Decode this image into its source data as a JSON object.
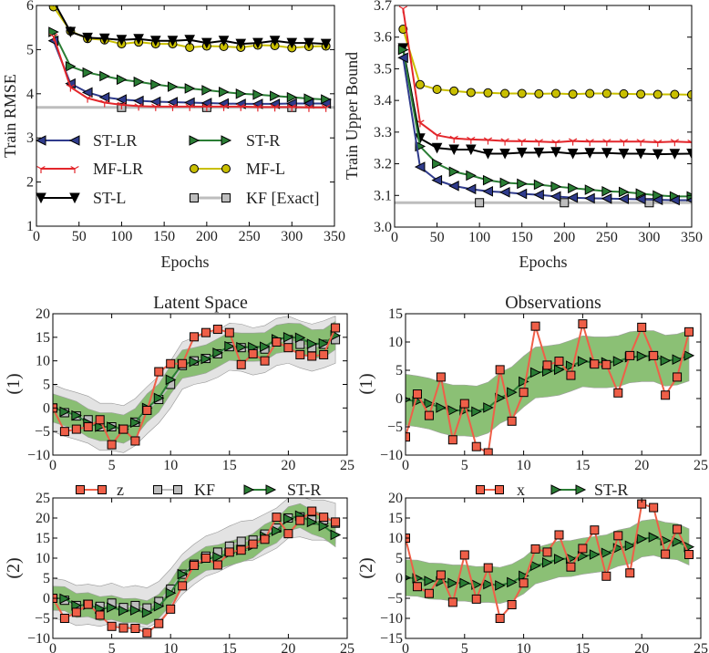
{
  "labels": {
    "rmse_ylabel": "Train RMSE",
    "bound_ylabel": "Train Upper Bound",
    "epochs_a": "Epochs",
    "epochs_b": "Epochs",
    "title_latent": "Latent Space",
    "title_obs": "Observations",
    "row1_left": "(1)",
    "row2_left": "(2)",
    "row1_right": "(1)",
    "row2_right": "(2)"
  },
  "colors": {
    "ST-LR": "#2f3b8c",
    "MF-LR": "#e3262b",
    "ST-L": "#000000",
    "ST-R": "#2a7d34",
    "MF-L": "#c9bf00",
    "KF": "#bdbdbd",
    "obs": "#ef5f48",
    "green_band": "#85bd6e",
    "gray_band": "#e3e3e3"
  },
  "chart_data": [
    {
      "type": "line",
      "xlabel": "Epochs",
      "ylabel": "Train RMSE",
      "xlim": [
        0,
        350
      ],
      "ylim": [
        1,
        6
      ],
      "xticks": [
        0,
        50,
        100,
        150,
        200,
        250,
        300,
        350
      ],
      "xtick_labels": [
        "0",
        "50",
        "100",
        "150",
        "200",
        "250",
        "300",
        "350"
      ],
      "yticks": [
        1,
        2,
        3,
        4,
        5,
        6
      ],
      "ytick_labels": [
        "1",
        "2",
        "3",
        "4",
        "5",
        "6"
      ],
      "legend_placement": "lower-left (inside, 2 columns)",
      "x": [
        20,
        40,
        60,
        80,
        100,
        120,
        140,
        160,
        180,
        200,
        220,
        240,
        260,
        280,
        300,
        320,
        340
      ],
      "series": [
        {
          "name": "KF [Exact]",
          "color": "#bdbdbd",
          "marker": "square",
          "x": [
            0,
            350
          ],
          "y": [
            3.69,
            3.69
          ],
          "marker_x": [
            100,
            200,
            300
          ]
        },
        {
          "name": "MF-L",
          "color": "#c9bf00",
          "marker": "circle",
          "y": [
            5.97,
            5.42,
            5.25,
            5.22,
            5.13,
            5.17,
            5.13,
            5.13,
            5.05,
            5.08,
            5.07,
            5.05,
            5.1,
            5.09,
            5.04,
            5.07,
            5.08
          ]
        },
        {
          "name": "ST-L",
          "color": "#000000",
          "marker": "tri-down",
          "y": [
            6.1,
            5.4,
            5.27,
            5.25,
            5.22,
            5.24,
            5.2,
            5.2,
            5.22,
            5.15,
            5.2,
            5.13,
            5.15,
            5.2,
            5.15,
            5.15,
            5.13
          ]
        },
        {
          "name": "ST-R",
          "color": "#2a7d34",
          "marker": "tri-right",
          "y": [
            5.4,
            4.62,
            4.48,
            4.4,
            4.32,
            4.27,
            4.21,
            4.16,
            4.12,
            4.08,
            4.04,
            4.0,
            3.98,
            3.95,
            3.92,
            3.89,
            3.87
          ]
        },
        {
          "name": "ST-LR",
          "color": "#2f3b8c",
          "marker": "tri-left",
          "y": [
            5.2,
            4.23,
            4.03,
            3.92,
            3.87,
            3.84,
            3.82,
            3.81,
            3.8,
            3.79,
            3.78,
            3.77,
            3.77,
            3.77,
            3.78,
            3.78,
            3.78
          ]
        },
        {
          "name": "MF-LR",
          "color": "#e3262b",
          "marker": "tri",
          "y": [
            5.3,
            4.15,
            3.9,
            3.8,
            3.75,
            3.72,
            3.71,
            3.71,
            3.71,
            3.71,
            3.71,
            3.71,
            3.7,
            3.7,
            3.7,
            3.69,
            3.69
          ]
        }
      ],
      "legend": [
        {
          "label": "ST-LR",
          "series": "ST-LR"
        },
        {
          "label": "MF-LR",
          "series": "MF-LR"
        },
        {
          "label": "ST-L",
          "series": "ST-L"
        },
        {
          "label": "ST-R",
          "series": "ST-R"
        },
        {
          "label": "MF-L",
          "series": "MF-L"
        },
        {
          "label": "KF [Exact]",
          "series": "KF [Exact]"
        }
      ]
    },
    {
      "type": "line",
      "xlabel": "Epochs",
      "ylabel": "Train Upper Bound",
      "xlim": [
        0,
        350
      ],
      "ylim": [
        3.0,
        3.7
      ],
      "xticks": [
        0,
        50,
        100,
        150,
        200,
        250,
        300,
        350
      ],
      "xtick_labels": [
        "0",
        "50",
        "100",
        "150",
        "200",
        "250",
        "300",
        "350"
      ],
      "yticks": [
        3.0,
        3.1,
        3.2,
        3.3,
        3.4,
        3.5,
        3.6,
        3.7
      ],
      "ytick_labels": [
        "3.0",
        "3.1",
        "3.2",
        "3.3",
        "3.4",
        "3.5",
        "3.6",
        "3.7"
      ],
      "x": [
        10,
        30,
        50,
        70,
        90,
        110,
        130,
        150,
        170,
        190,
        210,
        230,
        250,
        270,
        290,
        310,
        330,
        350
      ],
      "series": [
        {
          "name": "KF [Exact]",
          "color": "#bdbdbd",
          "marker": "square",
          "x": [
            0,
            350
          ],
          "y": [
            3.077,
            3.077
          ],
          "marker_x": [
            100,
            200,
            300
          ]
        },
        {
          "name": "MF-L",
          "color": "#c9bf00",
          "marker": "circle",
          "y": [
            3.625,
            3.45,
            3.435,
            3.43,
            3.425,
            3.424,
            3.422,
            3.422,
            3.421,
            3.422,
            3.42,
            3.422,
            3.422,
            3.421,
            3.42,
            3.419,
            3.419,
            3.418
          ]
        },
        {
          "name": "MF-LR",
          "color": "#e3262b",
          "marker": "tri",
          "y": [
            3.69,
            3.33,
            3.29,
            3.28,
            3.277,
            3.275,
            3.272,
            3.271,
            3.27,
            3.268,
            3.272,
            3.27,
            3.27,
            3.27,
            3.27,
            3.268,
            3.27,
            3.268
          ]
        },
        {
          "name": "ST-L",
          "color": "#000000",
          "marker": "tri-down",
          "y": [
            3.565,
            3.28,
            3.25,
            3.245,
            3.245,
            3.232,
            3.232,
            3.235,
            3.235,
            3.237,
            3.232,
            3.234,
            3.234,
            3.232,
            3.232,
            3.23,
            3.231,
            3.232
          ]
        },
        {
          "name": "ST-R",
          "color": "#2a7d34",
          "marker": "tri-right",
          "y": [
            3.56,
            3.255,
            3.2,
            3.175,
            3.163,
            3.148,
            3.14,
            3.137,
            3.134,
            3.128,
            3.123,
            3.118,
            3.113,
            3.111,
            3.106,
            3.1,
            3.097,
            3.097
          ]
        },
        {
          "name": "ST-LR",
          "color": "#2f3b8c",
          "marker": "tri-left",
          "y": [
            3.535,
            3.19,
            3.148,
            3.13,
            3.12,
            3.113,
            3.11,
            3.105,
            3.102,
            3.097,
            3.093,
            3.091,
            3.09,
            3.089,
            3.088,
            3.086,
            3.085,
            3.085
          ]
        }
      ]
    },
    {
      "type": "line",
      "title": "Latent Space",
      "ylabel": "(1)",
      "xlim": [
        0,
        25
      ],
      "ylim": [
        -10,
        20
      ],
      "xticks": [
        0,
        5,
        10,
        15,
        20,
        25
      ],
      "xtick_labels": [
        "0",
        "5",
        "10",
        "15",
        "20",
        "25"
      ],
      "yticks": [
        -10,
        -5,
        0,
        5,
        10,
        15,
        20
      ],
      "ytick_labels": [
        "−10",
        "−5",
        "0",
        "5",
        "10",
        "15",
        "20"
      ],
      "x": [
        0,
        1,
        2,
        3,
        4,
        5,
        6,
        7,
        8,
        9,
        10,
        11,
        12,
        13,
        14,
        15,
        16,
        17,
        18,
        19,
        20,
        21,
        22,
        23,
        24
      ],
      "series": [
        {
          "name": "KF",
          "color": "#bdbdbd",
          "marker": "square",
          "band": 5,
          "band_color": "#e3e3e3",
          "y": [
            0,
            -1,
            -1.7,
            -2.5,
            -4,
            -4,
            -4.5,
            -3,
            -0.5,
            1.8,
            5,
            9,
            10,
            10.5,
            11.5,
            13,
            12.8,
            12,
            12.5,
            14,
            14.5,
            13.5,
            12.8,
            13.5,
            14.5
          ]
        },
        {
          "name": "ST-R",
          "color": "#2a7d34",
          "marker": "tri-right",
          "band": 3,
          "band_color": "#85bd6e",
          "y": [
            0,
            -0.8,
            -1.6,
            -3.2,
            -4,
            -4,
            -4.5,
            -3.1,
            0,
            2.1,
            6,
            9.3,
            9.8,
            10.4,
            11.7,
            13.1,
            12.9,
            12.9,
            13,
            14.6,
            15,
            14.9,
            13.6,
            13.7,
            15.4
          ]
        },
        {
          "name": "z",
          "color": "#ef5f48",
          "marker": "square",
          "y": [
            0,
            -5,
            -4.5,
            -4,
            -2.5,
            -7.8,
            -4.5,
            -7,
            -0.5,
            7.7,
            9.4,
            9.4,
            15.1,
            16,
            16.7,
            16,
            9.2,
            11.5,
            10,
            14,
            12.8,
            11.3,
            11,
            11.3,
            17
          ]
        }
      ]
    },
    {
      "type": "line",
      "title": "Observations",
      "ylabel": "(1)",
      "xlim": [
        0,
        25
      ],
      "ylim": [
        -10,
        15
      ],
      "xticks": [
        0,
        5,
        10,
        15,
        20,
        25
      ],
      "xtick_labels": [
        "0",
        "5",
        "10",
        "15",
        "20",
        "25"
      ],
      "yticks": [
        -10,
        -5,
        0,
        5,
        10,
        15
      ],
      "ytick_labels": [
        "−10",
        "−5",
        "0",
        "5",
        "10",
        "15"
      ],
      "x": [
        0,
        1,
        2,
        3,
        4,
        5,
        6,
        7,
        8,
        9,
        10,
        11,
        12,
        13,
        14,
        15,
        16,
        17,
        18,
        19,
        20,
        21,
        22,
        23,
        24
      ],
      "series": [
        {
          "name": "ST-R",
          "color": "#2a7d34",
          "marker": "tri-right",
          "band": 4.5,
          "band_color": "#85bd6e",
          "y": [
            -0.2,
            -0.5,
            -0.9,
            -1.6,
            -2.1,
            -2.1,
            -2.3,
            -1.6,
            0.1,
            1.1,
            3,
            4.6,
            4.8,
            5.1,
            5.8,
            6.6,
            6.4,
            6.4,
            6.6,
            7.3,
            7.5,
            7.5,
            6.7,
            6.9,
            7.6
          ]
        },
        {
          "name": "x",
          "color": "#ef5f48",
          "marker": "square",
          "y": [
            -6.8,
            0.8,
            -3,
            3.8,
            -7.3,
            -0.9,
            -8.5,
            -9.6,
            5.1,
            -4,
            1.1,
            12.8,
            5.9,
            6.6,
            4.1,
            13.2,
            6.1,
            6,
            1,
            7.6,
            12.6,
            7.6,
            0.6,
            3.8,
            11.8
          ]
        }
      ]
    },
    {
      "type": "line",
      "ylabel": "(2)",
      "xlim": [
        0,
        25
      ],
      "ylim": [
        -10,
        25
      ],
      "xticks": [
        0,
        5,
        10,
        15,
        20,
        25
      ],
      "xtick_labels": [
        "0",
        "5",
        "10",
        "15",
        "20",
        "25"
      ],
      "yticks": [
        -10,
        -5,
        0,
        5,
        10,
        15,
        20,
        25
      ],
      "ytick_labels": [
        "−10",
        "−5",
        "0",
        "5",
        "10",
        "15",
        "20",
        "25"
      ],
      "legend_placement": "top (above axes)",
      "x": [
        0,
        1,
        2,
        3,
        4,
        5,
        6,
        7,
        8,
        9,
        10,
        11,
        12,
        13,
        14,
        15,
        16,
        17,
        18,
        19,
        20,
        21,
        22,
        23,
        24
      ],
      "series": [
        {
          "name": "KF",
          "color": "#bdbdbd",
          "marker": "square",
          "band": 5,
          "band_color": "#e3e3e3",
          "y": [
            0,
            -0.5,
            -1.8,
            -1.5,
            -2,
            -1.2,
            -2.3,
            -1.8,
            -2.4,
            -0.8,
            2.3,
            6,
            8.5,
            10.5,
            11.5,
            13,
            14.2,
            14.5,
            16,
            17.5,
            20,
            20.3,
            19.5,
            19.5,
            18.7
          ]
        },
        {
          "name": "ST-R",
          "color": "#2a7d34",
          "marker": "tri-right",
          "band": 3,
          "band_color": "#85bd6e",
          "y": [
            0,
            -0.1,
            -1.8,
            -1.6,
            -2.6,
            -2.3,
            -3.1,
            -3,
            -3.6,
            -2,
            1.3,
            6,
            8,
            9.9,
            10.3,
            11.2,
            12,
            13.1,
            15.4,
            16.8,
            19.8,
            20.6,
            19,
            18,
            15.8
          ]
        },
        {
          "name": "z",
          "color": "#ef5f48",
          "marker": "square",
          "y": [
            0,
            -5,
            -3.5,
            -1.5,
            -4.2,
            -7,
            -7.4,
            -7.5,
            -8.6,
            -6.3,
            -2.7,
            3.1,
            8.2,
            10,
            8.3,
            11.5,
            12,
            13.5,
            14.7,
            20.2,
            16.1,
            19.4,
            21.7,
            20.2,
            19
          ]
        }
      ],
      "legend": [
        {
          "label": "z",
          "series": "z"
        },
        {
          "label": "KF",
          "series": "KF"
        },
        {
          "label": "ST-R",
          "series": "ST-R"
        }
      ]
    },
    {
      "type": "line",
      "ylabel": "(2)",
      "xlim": [
        0,
        25
      ],
      "ylim": [
        -15,
        20
      ],
      "xticks": [
        0,
        5,
        10,
        15,
        20,
        25
      ],
      "xtick_labels": [
        "0",
        "5",
        "10",
        "15",
        "20",
        "25"
      ],
      "yticks": [
        -15,
        -10,
        -5,
        0,
        5,
        10,
        15,
        20
      ],
      "ytick_labels": [
        "−15",
        "−10",
        "−5",
        "0",
        "5",
        "10",
        "15",
        "20"
      ],
      "legend_placement": "top (above axes)",
      "x": [
        0,
        1,
        2,
        3,
        4,
        5,
        6,
        7,
        8,
        9,
        10,
        11,
        12,
        13,
        14,
        15,
        16,
        17,
        18,
        19,
        20,
        21,
        22,
        23,
        24
      ],
      "series": [
        {
          "name": "ST-R",
          "color": "#2a7d34",
          "marker": "tri-right",
          "band": 4.5,
          "band_color": "#85bd6e",
          "y": [
            0.1,
            0,
            -0.7,
            -0.8,
            -1.2,
            -1.2,
            -1.6,
            -1.5,
            -1.8,
            -1,
            0.6,
            3.1,
            3.9,
            4.8,
            4.9,
            5.5,
            5.9,
            6.3,
            7.5,
            8.1,
            9.8,
            10.2,
            9.4,
            9.1,
            7.8
          ]
        },
        {
          "name": "x",
          "color": "#ef5f48",
          "marker": "square",
          "y": [
            10,
            -2.1,
            -3.8,
            0.8,
            -6,
            5.8,
            -5.2,
            2.6,
            -10,
            -6.6,
            -1.2,
            7.3,
            6.5,
            10.8,
            2.8,
            7.4,
            12,
            0.5,
            10.6,
            1.3,
            18.5,
            17.6,
            6,
            12.2,
            5.9
          ]
        }
      ],
      "legend": [
        {
          "label": "x",
          "series": "x"
        },
        {
          "label": "ST-R",
          "series": "ST-R"
        }
      ]
    }
  ]
}
